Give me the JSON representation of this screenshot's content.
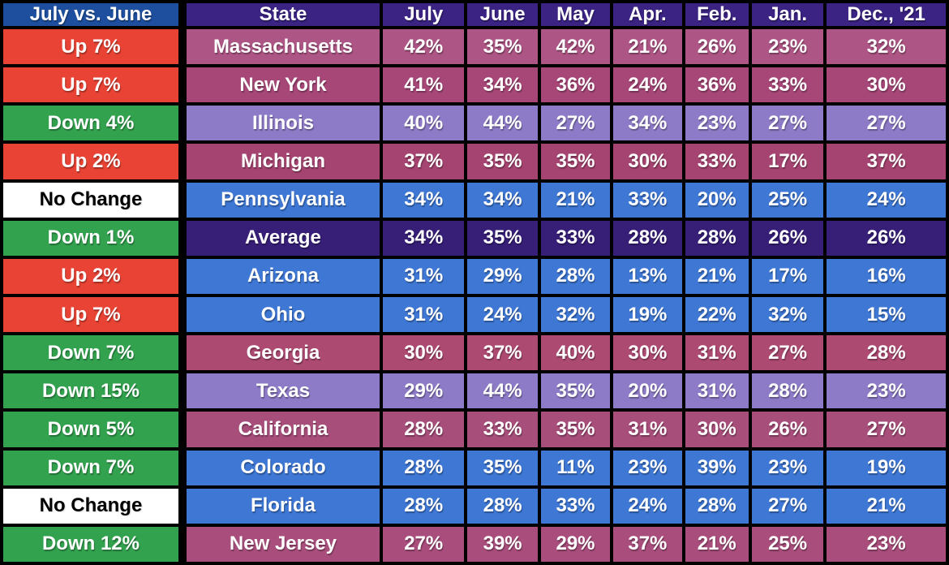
{
  "table": {
    "columns": [
      {
        "key": "change",
        "label": "July vs. June"
      },
      {
        "key": "state",
        "label": "State"
      },
      {
        "key": "july",
        "label": "July"
      },
      {
        "key": "june",
        "label": "June"
      },
      {
        "key": "may",
        "label": "May"
      },
      {
        "key": "apr",
        "label": "Apr."
      },
      {
        "key": "feb",
        "label": "Feb."
      },
      {
        "key": "jan",
        "label": "Jan."
      },
      {
        "key": "dec21",
        "label": "Dec., '21"
      }
    ],
    "colors": {
      "header_change_bg": "#1d4f9e",
      "header_bg": "#3a2383",
      "up_bg": "#e84334",
      "down_bg": "#33a24f",
      "no_change_bg": "#ffffff",
      "no_change_text": "#000000",
      "cell_text": "#ffffff",
      "grid": "#000000",
      "row_blue": "#3e77d4",
      "row_light_purple": "#8e7bc7",
      "row_indigo": "#371f78"
    },
    "rows": [
      {
        "change": "Up 7%",
        "change_type": "up",
        "state": "Massachusetts",
        "row_bg": "#ad5584",
        "values": [
          "42%",
          "35%",
          "42%",
          "21%",
          "26%",
          "23%",
          "32%"
        ]
      },
      {
        "change": "Up 7%",
        "change_type": "up",
        "state": "New York",
        "row_bg": "#a74777",
        "values": [
          "41%",
          "34%",
          "36%",
          "24%",
          "36%",
          "33%",
          "30%"
        ]
      },
      {
        "change": "Down 4%",
        "change_type": "down",
        "state": "Illinois",
        "row_bg": "#8e7bc7",
        "values": [
          "40%",
          "44%",
          "27%",
          "34%",
          "23%",
          "27%",
          "27%"
        ]
      },
      {
        "change": "Up 2%",
        "change_type": "up",
        "state": "Michigan",
        "row_bg": "#a54470",
        "values": [
          "37%",
          "35%",
          "35%",
          "30%",
          "33%",
          "17%",
          "37%"
        ]
      },
      {
        "change": "No Change",
        "change_type": "no_change",
        "state": "Pennsylvania",
        "row_bg": "#3e77d4",
        "values": [
          "34%",
          "34%",
          "21%",
          "33%",
          "20%",
          "25%",
          "24%"
        ]
      },
      {
        "change": "Down 1%",
        "change_type": "down",
        "state": "Average",
        "row_bg": "#371f78",
        "values": [
          "34%",
          "35%",
          "33%",
          "28%",
          "28%",
          "26%",
          "26%"
        ]
      },
      {
        "change": "Up 2%",
        "change_type": "up",
        "state": "Arizona",
        "row_bg": "#3e77d4",
        "values": [
          "31%",
          "29%",
          "28%",
          "13%",
          "21%",
          "17%",
          "16%"
        ]
      },
      {
        "change": "Up 7%",
        "change_type": "up",
        "state": "Ohio",
        "row_bg": "#3e77d4",
        "values": [
          "31%",
          "24%",
          "32%",
          "19%",
          "22%",
          "32%",
          "15%"
        ]
      },
      {
        "change": "Down 7%",
        "change_type": "down",
        "state": "Georgia",
        "row_bg": "#ad4a72",
        "values": [
          "30%",
          "37%",
          "40%",
          "30%",
          "31%",
          "27%",
          "28%"
        ]
      },
      {
        "change": "Down 15%",
        "change_type": "down",
        "state": "Texas",
        "row_bg": "#8e7bc7",
        "values": [
          "29%",
          "44%",
          "35%",
          "20%",
          "31%",
          "28%",
          "23%"
        ]
      },
      {
        "change": "Down 5%",
        "change_type": "down",
        "state": "California",
        "row_bg": "#a84e7a",
        "values": [
          "28%",
          "33%",
          "35%",
          "31%",
          "30%",
          "26%",
          "27%"
        ]
      },
      {
        "change": "Down 7%",
        "change_type": "down",
        "state": "Colorado",
        "row_bg": "#3e77d4",
        "values": [
          "28%",
          "35%",
          "11%",
          "23%",
          "39%",
          "23%",
          "19%"
        ]
      },
      {
        "change": "No Change",
        "change_type": "no_change",
        "state": "Florida",
        "row_bg": "#3e77d4",
        "values": [
          "28%",
          "28%",
          "33%",
          "24%",
          "28%",
          "27%",
          "21%"
        ]
      },
      {
        "change": "Down 12%",
        "change_type": "down",
        "state": "New Jersey",
        "row_bg": "#a94e7c",
        "values": [
          "27%",
          "39%",
          "29%",
          "37%",
          "21%",
          "25%",
          "23%"
        ]
      }
    ]
  },
  "chart_data": {
    "type": "table",
    "columns": [
      "July vs. June",
      "State",
      "July",
      "June",
      "May",
      "Apr.",
      "Feb.",
      "Jan.",
      "Dec., '21"
    ],
    "rows": [
      [
        "Up 7%",
        "Massachusetts",
        "42%",
        "35%",
        "42%",
        "21%",
        "26%",
        "23%",
        "32%"
      ],
      [
        "Up 7%",
        "New York",
        "41%",
        "34%",
        "36%",
        "24%",
        "36%",
        "33%",
        "30%"
      ],
      [
        "Down 4%",
        "Illinois",
        "40%",
        "44%",
        "27%",
        "34%",
        "23%",
        "27%",
        "27%"
      ],
      [
        "Up 2%",
        "Michigan",
        "37%",
        "35%",
        "35%",
        "30%",
        "33%",
        "17%",
        "37%"
      ],
      [
        "No Change",
        "Pennsylvania",
        "34%",
        "34%",
        "21%",
        "33%",
        "20%",
        "25%",
        "24%"
      ],
      [
        "Down 1%",
        "Average",
        "34%",
        "35%",
        "33%",
        "28%",
        "28%",
        "26%",
        "26%"
      ],
      [
        "Up 2%",
        "Arizona",
        "31%",
        "29%",
        "28%",
        "13%",
        "21%",
        "17%",
        "16%"
      ],
      [
        "Up 7%",
        "Ohio",
        "31%",
        "24%",
        "32%",
        "19%",
        "22%",
        "32%",
        "15%"
      ],
      [
        "Down 7%",
        "Georgia",
        "30%",
        "37%",
        "40%",
        "30%",
        "31%",
        "27%",
        "28%"
      ],
      [
        "Down 15%",
        "Texas",
        "29%",
        "44%",
        "35%",
        "20%",
        "31%",
        "28%",
        "23%"
      ],
      [
        "Down 5%",
        "California",
        "28%",
        "33%",
        "35%",
        "31%",
        "30%",
        "26%",
        "27%"
      ],
      [
        "Down 7%",
        "Colorado",
        "28%",
        "35%",
        "11%",
        "23%",
        "39%",
        "23%",
        "19%"
      ],
      [
        "No Change",
        "Florida",
        "28%",
        "28%",
        "33%",
        "24%",
        "28%",
        "27%",
        "21%"
      ],
      [
        "Down 12%",
        "New Jersey",
        "27%",
        "39%",
        "29%",
        "37%",
        "21%",
        "25%",
        "23%"
      ]
    ]
  }
}
